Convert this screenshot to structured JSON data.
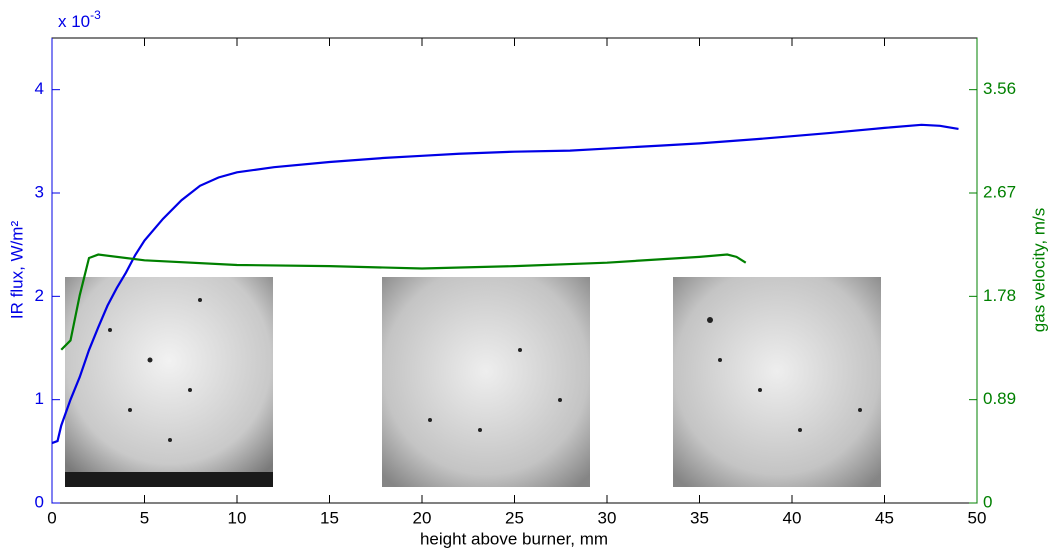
{
  "chart_data": {
    "type": "line",
    "xlabel": "height above burner, mm",
    "ylabel": "IR flux, W/m²",
    "y2label": "gas velocity, m/s",
    "y_multiplier": "x 10",
    "y_multiplier_exponent": "-3",
    "xlim": [
      0,
      50
    ],
    "xticks": [
      0,
      5,
      10,
      15,
      20,
      25,
      30,
      35,
      40,
      45,
      50
    ],
    "ylim": [
      0,
      4.5
    ],
    "yticks": [
      0,
      1,
      2,
      3,
      4
    ],
    "y2lim": [
      0,
      4.005
    ],
    "y2ticks": [
      0,
      0.89,
      1.78,
      2.67,
      3.56
    ],
    "ycolor": "#0000e6",
    "y2color": "#008000",
    "series": [
      {
        "color": "#0000e6",
        "x": [
          0,
          0.3,
          0.5,
          1,
          1.5,
          2,
          2.5,
          3,
          3.5,
          4,
          4.5,
          5,
          6,
          7,
          8,
          9,
          10,
          12,
          15,
          18,
          20,
          22,
          25,
          28,
          30,
          33,
          35,
          38,
          40,
          42,
          45,
          47,
          48,
          49
        ],
        "values": [
          0.58,
          0.6,
          0.75,
          1.0,
          1.22,
          1.48,
          1.7,
          1.91,
          2.08,
          2.23,
          2.4,
          2.54,
          2.75,
          2.93,
          3.07,
          3.15,
          3.2,
          3.25,
          3.3,
          3.34,
          3.36,
          3.38,
          3.4,
          3.41,
          3.43,
          3.46,
          3.48,
          3.52,
          3.55,
          3.58,
          3.63,
          3.66,
          3.65,
          3.62
        ]
      },
      {
        "color": "#008000",
        "axis": "y2",
        "x": [
          0.5,
          1,
          1.5,
          2,
          2.5,
          5,
          10,
          15,
          20,
          25,
          30,
          35,
          36.5,
          37,
          37.5
        ],
        "values": [
          1.32,
          1.4,
          1.79,
          2.11,
          2.14,
          2.09,
          2.05,
          2.04,
          2.02,
          2.04,
          2.07,
          2.12,
          2.14,
          2.12,
          2.07
        ]
      }
    ]
  }
}
